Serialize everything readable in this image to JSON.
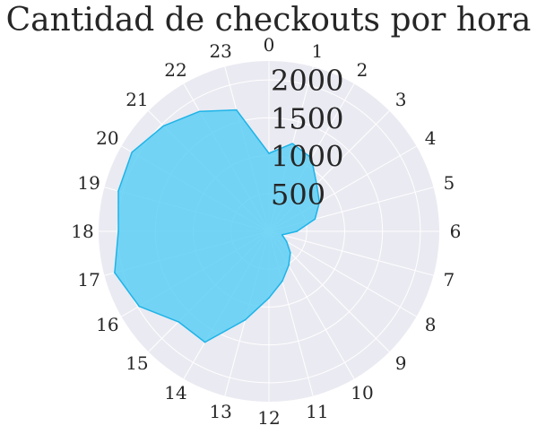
{
  "chart_data": {
    "type": "area",
    "projection": "polar",
    "title": "Cantidad de checkouts por hora",
    "theta_labels": [
      "0",
      "1",
      "2",
      "3",
      "4",
      "5",
      "6",
      "7",
      "8",
      "9",
      "10",
      "11",
      "12",
      "13",
      "14",
      "15",
      "16",
      "17",
      "18",
      "19",
      "20",
      "21",
      "22",
      "23"
    ],
    "r_ticks": [
      "500",
      "1000",
      "1500",
      "2000"
    ],
    "r_tick_values": [
      500,
      1000,
      1500,
      2000
    ],
    "rlim": [
      0,
      2250
    ],
    "direction": "clockwise",
    "zero_location": "top",
    "grid": true,
    "series": [
      {
        "values": [
          1030,
          1200,
          1120,
          890,
          770,
          630,
          370,
          180,
          270,
          400,
          520,
          680,
          880,
          1210,
          1690,
          1690,
          1980,
          2110,
          1990,
          2060,
          2090,
          1970,
          1830,
          1660
        ],
        "fill_color": "#5ecff5",
        "line_color": "#1db4e8"
      }
    ],
    "background_color": "#eaeaf2",
    "grid_color": "#ffffff"
  }
}
